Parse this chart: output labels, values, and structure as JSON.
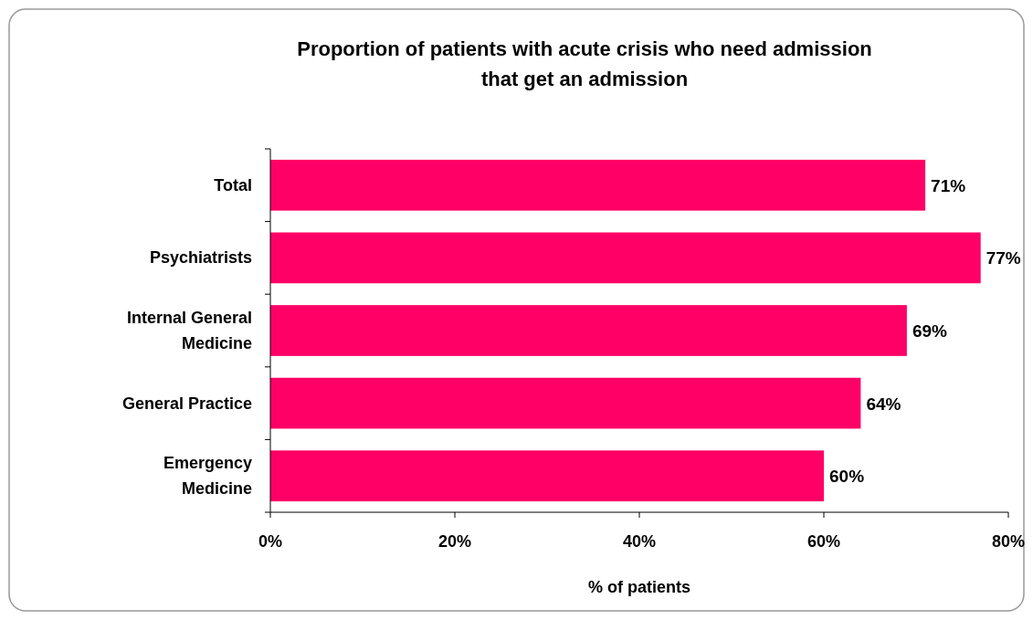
{
  "chart_data": {
    "type": "bar",
    "orientation": "horizontal",
    "title": "Proportion of patients with acute crisis who need admission that get an admission",
    "xlabel": "% of patients",
    "categories": [
      "Total",
      "Psychiatrists",
      "Internal General Medicine",
      "General Practice",
      "Emergency Medicine"
    ],
    "values": [
      71,
      77,
      69,
      64,
      60
    ],
    "value_labels": [
      "71%",
      "77%",
      "69%",
      "64%",
      "60%"
    ],
    "color": "#ff0066",
    "xlim": [
      0,
      80
    ],
    "xticks": [
      {
        "value": 0,
        "label": "0%"
      },
      {
        "value": 20,
        "label": "20%"
      },
      {
        "value": 40,
        "label": "40%"
      },
      {
        "value": 60,
        "label": "60%"
      },
      {
        "value": 80,
        "label": "80%"
      }
    ],
    "grid": false
  }
}
